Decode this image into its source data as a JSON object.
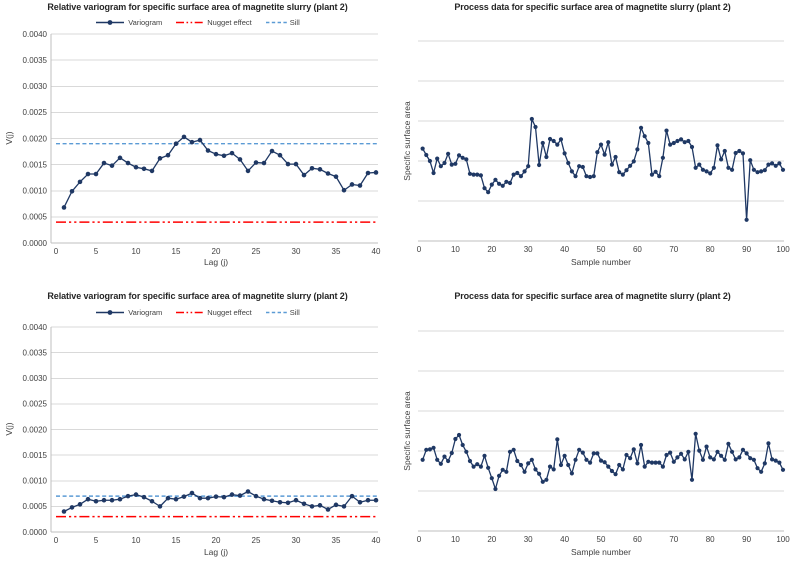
{
  "page": {
    "background": "#FFFFFF"
  },
  "palette": {
    "series_navy": "#1F3864",
    "nugget_red": "#FF0000",
    "sill_blue": "#5B9BD5",
    "gridline_gray": "#D9D9D9",
    "axis_gray": "#BFBFBF",
    "tick_text_gray": "#404040",
    "title_dark": "#262626"
  },
  "chart_data": [
    {
      "type": "line",
      "title": "Relative variogram for specific surface area of magnetite slurry (plant 2)",
      "xlabel": "Lag (j)",
      "ylabel": "V(j)",
      "legend": [
        {
          "label": "Variogram",
          "style": "solid-line-circle-marker",
          "color": "#1F3864"
        },
        {
          "label": "Nugget effect",
          "style": "long-dash-dot-dot",
          "color": "#FF0000"
        },
        {
          "label": "Sill",
          "style": "dashed",
          "color": "#5B9BD5"
        }
      ],
      "legend_position": "top",
      "grid": "horizontal",
      "xlim": [
        0,
        40
      ],
      "ylim": [
        0,
        0.004
      ],
      "xticks": [
        0,
        5,
        10,
        15,
        20,
        25,
        30,
        35,
        40
      ],
      "ytick_labels": [
        "0.0000",
        "0.0005",
        "0.0010",
        "0.0015",
        "0.0020",
        "0.0025",
        "0.0030",
        "0.0035",
        "0.0040"
      ],
      "x": [
        1,
        2,
        3,
        4,
        5,
        6,
        7,
        8,
        9,
        10,
        11,
        12,
        13,
        14,
        15,
        16,
        17,
        18,
        19,
        20,
        21,
        22,
        23,
        24,
        25,
        26,
        27,
        28,
        29,
        30,
        31,
        32,
        33,
        34,
        35,
        36,
        37,
        38,
        39,
        40
      ],
      "variogram": [
        0.00068,
        0.00099,
        0.00117,
        0.00132,
        0.00132,
        0.00153,
        0.00148,
        0.00163,
        0.00153,
        0.00145,
        0.00142,
        0.00138,
        0.00162,
        0.00168,
        0.0019,
        0.00203,
        0.00193,
        0.00197,
        0.00177,
        0.0017,
        0.00167,
        0.00172,
        0.0016,
        0.00138,
        0.00154,
        0.00153,
        0.00176,
        0.00168,
        0.00151,
        0.00151,
        0.0013,
        0.00143,
        0.00141,
        0.00133,
        0.00127,
        0.00101,
        0.00112,
        0.0011,
        0.00134,
        0.00135
      ],
      "nugget_effect": 0.0004,
      "sill": 0.0019
    },
    {
      "type": "line",
      "title": "Process data for specific surface area of magnetite slurry (plant 2)",
      "xlabel": "Sample number",
      "ylabel": "Specific surface area",
      "grid": "horizontal",
      "xlim": [
        0,
        100
      ],
      "xticks": [
        0,
        10,
        20,
        30,
        40,
        50,
        60,
        70,
        80,
        90,
        100
      ],
      "ylim": [
        0,
        5
      ],
      "gridlines_y": [
        1,
        2,
        3,
        4,
        5
      ],
      "y_axis_note": "no y tick labels shown; values in gridline units",
      "x": {
        "start": 1,
        "step": 1,
        "count": 100
      },
      "values": [
        2.31,
        2.15,
        2.0,
        1.7,
        2.06,
        1.87,
        1.95,
        2.18,
        1.91,
        1.93,
        2.14,
        2.08,
        2.04,
        1.68,
        1.66,
        1.66,
        1.64,
        1.32,
        1.22,
        1.41,
        1.53,
        1.43,
        1.38,
        1.48,
        1.45,
        1.66,
        1.7,
        1.62,
        1.74,
        1.87,
        3.05,
        2.85,
        1.9,
        2.45,
        2.1,
        2.55,
        2.5,
        2.41,
        2.54,
        2.19,
        1.95,
        1.74,
        1.62,
        1.87,
        1.85,
        1.62,
        1.6,
        1.62,
        2.22,
        2.41,
        2.16,
        2.47,
        1.91,
        2.1,
        1.72,
        1.66,
        1.77,
        1.88,
        1.99,
        2.29,
        2.83,
        2.62,
        2.45,
        1.66,
        1.73,
        1.62,
        2.08,
        2.76,
        2.41,
        2.45,
        2.5,
        2.54,
        2.47,
        2.5,
        2.35,
        1.83,
        1.91,
        1.78,
        1.74,
        1.69,
        1.83,
        2.39,
        2.04,
        2.25,
        1.83,
        1.78,
        2.2,
        2.25,
        2.19,
        0.53,
        2.02,
        1.78,
        1.72,
        1.74,
        1.77,
        1.91,
        1.94,
        1.88,
        1.94,
        1.78
      ]
    },
    {
      "type": "line",
      "title": "Relative variogram for specific surface area of magnetite slurry (plant 2)",
      "xlabel": "Lag (j)",
      "ylabel": "V(j)",
      "legend": [
        {
          "label": "Variogram",
          "style": "solid-line-circle-marker",
          "color": "#1F3864"
        },
        {
          "label": "Nugget effect",
          "style": "long-dash-dot-dot",
          "color": "#FF0000"
        },
        {
          "label": "Sill",
          "style": "dashed",
          "color": "#5B9BD5"
        }
      ],
      "legend_position": "top",
      "grid": "horizontal",
      "xlim": [
        0,
        40
      ],
      "ylim": [
        0,
        0.004
      ],
      "xticks": [
        0,
        5,
        10,
        15,
        20,
        25,
        30,
        35,
        40
      ],
      "ytick_labels": [
        "0.0000",
        "0.0005",
        "0.0010",
        "0.0015",
        "0.0020",
        "0.0025",
        "0.0030",
        "0.0035",
        "0.0040"
      ],
      "x": [
        1,
        2,
        3,
        4,
        5,
        6,
        7,
        8,
        9,
        10,
        11,
        12,
        13,
        14,
        15,
        16,
        17,
        18,
        19,
        20,
        21,
        22,
        23,
        24,
        25,
        26,
        27,
        28,
        29,
        30,
        31,
        32,
        33,
        34,
        35,
        36,
        37,
        38,
        39,
        40
      ],
      "variogram": [
        0.0004,
        0.00048,
        0.00054,
        0.00064,
        0.0006,
        0.00062,
        0.00062,
        0.00064,
        0.0007,
        0.00073,
        0.00068,
        0.0006,
        0.0005,
        0.00066,
        0.00064,
        0.00069,
        0.00076,
        0.00066,
        0.00066,
        0.00069,
        0.00068,
        0.00073,
        0.00071,
        0.00079,
        0.0007,
        0.00064,
        0.00061,
        0.00058,
        0.00057,
        0.00062,
        0.00055,
        0.0005,
        0.00052,
        0.00044,
        0.00053,
        0.0005,
        0.0007,
        0.00058,
        0.00062,
        0.00062
      ],
      "nugget_effect": 0.0003,
      "sill": 0.0007
    },
    {
      "type": "line",
      "title": "Process data for specific surface area of magnetite slurry (plant 2)",
      "xlabel": "Sample number",
      "ylabel": "Specific surface area",
      "grid": "horizontal",
      "xlim": [
        0,
        100
      ],
      "xticks": [
        0,
        10,
        20,
        30,
        40,
        50,
        60,
        70,
        80,
        90,
        100
      ],
      "ylim": [
        0,
        5
      ],
      "gridlines_y": [
        1,
        2,
        3,
        4,
        5
      ],
      "y_axis_note": "no y tick labels shown; values in gridline units",
      "x": {
        "start": 1,
        "step": 1,
        "count": 100
      },
      "values": [
        1.78,
        2.03,
        2.04,
        2.08,
        1.78,
        1.68,
        1.86,
        1.75,
        1.95,
        2.3,
        2.4,
        2.15,
        1.98,
        1.75,
        1.61,
        1.67,
        1.61,
        1.88,
        1.58,
        1.32,
        1.05,
        1.38,
        1.53,
        1.48,
        1.98,
        2.03,
        1.75,
        1.65,
        1.48,
        1.69,
        1.78,
        1.54,
        1.43,
        1.23,
        1.28,
        1.61,
        1.54,
        2.29,
        1.65,
        1.88,
        1.65,
        1.44,
        1.78,
        2.03,
        1.96,
        1.78,
        1.71,
        1.94,
        1.94,
        1.76,
        1.72,
        1.61,
        1.5,
        1.42,
        1.65,
        1.54,
        1.9,
        1.82,
        2.04,
        1.69,
        2.15,
        1.61,
        1.73,
        1.71,
        1.71,
        1.71,
        1.61,
        1.9,
        1.96,
        1.73,
        1.84,
        1.93,
        1.79,
        1.98,
        1.28,
        2.43,
        2.01,
        1.78,
        2.11,
        1.84,
        1.79,
        1.98,
        1.88,
        1.78,
        2.18,
        1.98,
        1.79,
        1.84,
        2.03,
        1.94,
        1.82,
        1.78,
        1.57,
        1.48,
        1.69,
        2.19,
        1.79,
        1.76,
        1.71,
        1.53
      ]
    }
  ]
}
